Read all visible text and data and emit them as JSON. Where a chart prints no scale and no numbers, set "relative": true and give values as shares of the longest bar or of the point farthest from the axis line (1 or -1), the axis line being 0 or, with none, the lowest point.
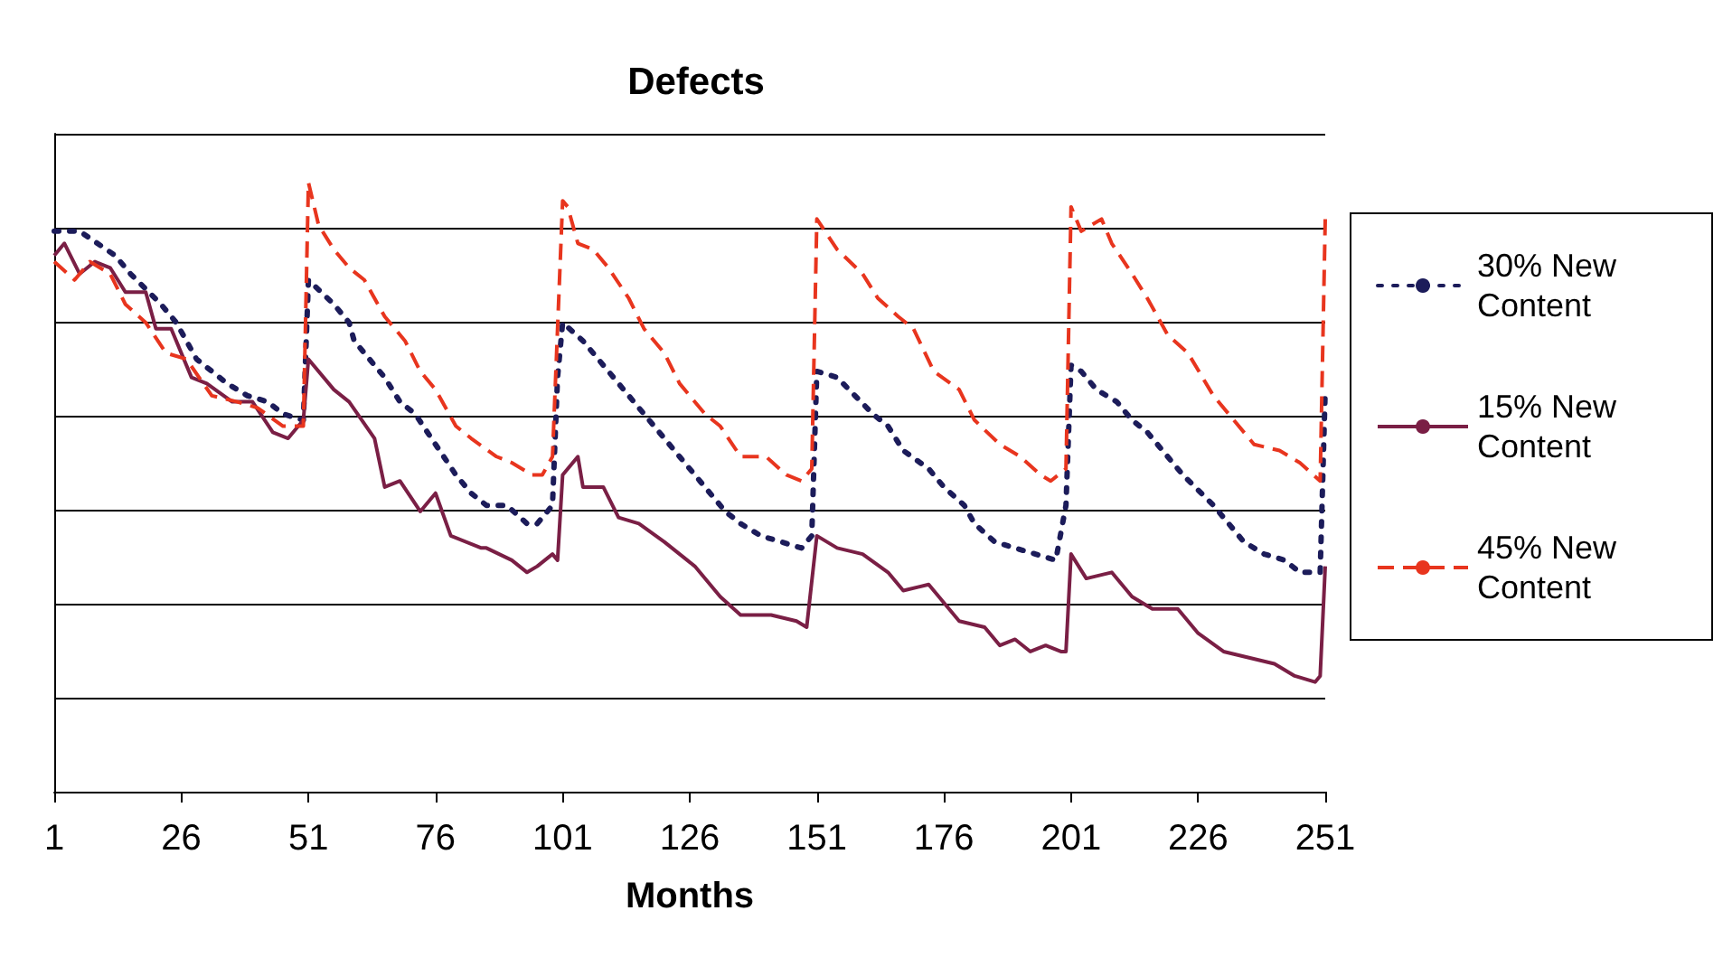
{
  "chart_data": {
    "type": "line",
    "title": "Defects",
    "xlabel": "Months",
    "relative": true,
    "grid": "y",
    "legend": "right",
    "marker": "none",
    "xlim": [
      1,
      251
    ],
    "xticks": [
      1,
      26,
      51,
      76,
      101,
      126,
      151,
      176,
      201,
      226,
      251
    ],
    "series": [
      {
        "name": "30% New Content",
        "color": "#1c1c5a",
        "line_style": "dotted",
        "x": [
          1,
          6,
          13,
          16,
          22,
          25,
          29,
          35,
          39,
          43,
          46,
          50,
          51,
          56,
          59,
          60,
          66,
          69,
          72,
          76,
          80,
          83,
          86,
          90,
          94,
          96,
          99,
          100,
          101,
          105,
          108,
          114,
          117,
          121,
          124,
          128,
          133,
          136,
          140,
          144,
          148,
          150,
          151,
          155,
          162,
          165,
          168,
          173,
          176,
          180,
          182,
          186,
          190,
          194,
          198,
          200,
          201,
          203,
          206,
          210,
          213,
          216,
          219,
          223,
          229,
          232,
          235,
          239,
          243,
          246,
          250,
          251
        ],
        "values": [
          0.92,
          0.92,
          0.88,
          0.85,
          0.8,
          0.77,
          0.71,
          0.67,
          0.65,
          0.64,
          0.62,
          0.61,
          0.84,
          0.8,
          0.77,
          0.74,
          0.68,
          0.64,
          0.62,
          0.57,
          0.52,
          0.49,
          0.47,
          0.47,
          0.44,
          0.44,
          0.47,
          0.68,
          0.77,
          0.74,
          0.71,
          0.65,
          0.62,
          0.58,
          0.55,
          0.51,
          0.46,
          0.44,
          0.42,
          0.41,
          0.4,
          0.42,
          0.69,
          0.68,
          0.62,
          0.6,
          0.56,
          0.53,
          0.5,
          0.47,
          0.44,
          0.41,
          0.4,
          0.39,
          0.38,
          0.47,
          0.7,
          0.69,
          0.66,
          0.64,
          0.61,
          0.59,
          0.56,
          0.52,
          0.47,
          0.44,
          0.41,
          0.39,
          0.38,
          0.36,
          0.36,
          0.66
        ]
      },
      {
        "name": "15% New Content",
        "color": "#7a1f45",
        "line_style": "solid",
        "x": [
          1,
          3,
          6,
          9,
          12,
          15,
          19,
          21,
          24,
          28,
          31,
          36,
          40,
          44,
          47,
          50,
          51,
          56,
          59,
          64,
          66,
          69,
          73,
          76,
          79,
          85,
          86,
          91,
          94,
          96,
          99,
          100,
          101,
          104,
          105,
          109,
          112,
          116,
          121,
          127,
          132,
          136,
          142,
          147,
          149,
          151,
          155,
          160,
          165,
          168,
          173,
          176,
          179,
          184,
          187,
          190,
          193,
          196,
          199,
          200,
          201,
          204,
          209,
          213,
          217,
          222,
          226,
          231,
          236,
          241,
          245,
          249,
          250,
          251
        ],
        "values": [
          0.88,
          0.9,
          0.85,
          0.87,
          0.86,
          0.82,
          0.82,
          0.76,
          0.76,
          0.68,
          0.67,
          0.64,
          0.64,
          0.59,
          0.58,
          0.61,
          0.71,
          0.66,
          0.64,
          0.58,
          0.5,
          0.51,
          0.46,
          0.49,
          0.42,
          0.4,
          0.4,
          0.38,
          0.36,
          0.37,
          0.39,
          0.38,
          0.52,
          0.55,
          0.5,
          0.5,
          0.45,
          0.44,
          0.41,
          0.37,
          0.32,
          0.29,
          0.29,
          0.28,
          0.27,
          0.42,
          0.4,
          0.39,
          0.36,
          0.33,
          0.34,
          0.31,
          0.28,
          0.27,
          0.24,
          0.25,
          0.23,
          0.24,
          0.23,
          0.23,
          0.39,
          0.35,
          0.36,
          0.32,
          0.3,
          0.3,
          0.26,
          0.23,
          0.22,
          0.21,
          0.19,
          0.18,
          0.19,
          0.37
        ]
      },
      {
        "name": "45% New Content",
        "color": "#e8351e",
        "line_style": "dashed",
        "x": [
          1,
          5,
          8,
          12,
          15,
          19,
          23,
          27,
          32,
          37,
          41,
          46,
          49,
          50,
          51,
          53,
          56,
          59,
          62,
          66,
          70,
          73,
          76,
          80,
          83,
          88,
          91,
          95,
          97,
          99,
          101,
          102,
          104,
          107,
          110,
          114,
          117,
          121,
          124,
          129,
          132,
          136,
          141,
          145,
          148,
          150,
          151,
          155,
          160,
          163,
          167,
          170,
          174,
          179,
          182,
          187,
          191,
          195,
          197,
          200,
          201,
          203,
          207,
          209,
          213,
          216,
          220,
          224,
          229,
          233,
          237,
          242,
          246,
          250,
          251
        ],
        "values": [
          0.87,
          0.84,
          0.87,
          0.85,
          0.8,
          0.77,
          0.72,
          0.71,
          0.65,
          0.64,
          0.63,
          0.6,
          0.6,
          0.6,
          1.0,
          0.93,
          0.89,
          0.86,
          0.84,
          0.78,
          0.74,
          0.69,
          0.66,
          0.6,
          0.58,
          0.55,
          0.54,
          0.52,
          0.52,
          0.55,
          0.97,
          0.96,
          0.9,
          0.89,
          0.86,
          0.81,
          0.76,
          0.72,
          0.67,
          0.62,
          0.6,
          0.55,
          0.55,
          0.52,
          0.51,
          0.53,
          0.94,
          0.89,
          0.85,
          0.81,
          0.78,
          0.76,
          0.69,
          0.66,
          0.61,
          0.57,
          0.55,
          0.52,
          0.51,
          0.53,
          0.96,
          0.92,
          0.94,
          0.9,
          0.85,
          0.81,
          0.75,
          0.72,
          0.65,
          0.61,
          0.57,
          0.56,
          0.54,
          0.51,
          0.94
        ]
      }
    ]
  }
}
